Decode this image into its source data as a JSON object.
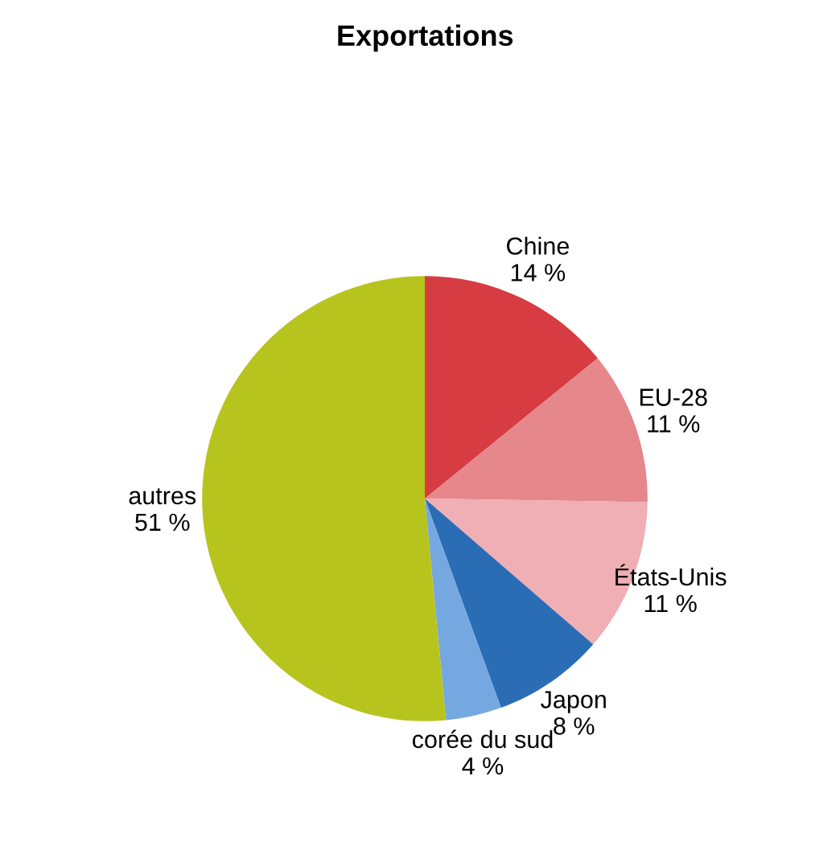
{
  "chart_data": {
    "type": "pie",
    "title": "Exportations",
    "categories": [
      "Chine",
      "EU-28",
      "États-Unis",
      "Japon",
      "corée du sud",
      "autres"
    ],
    "values": [
      14,
      11,
      11,
      8,
      4,
      51
    ],
    "value_labels": [
      "14 %",
      "11 %",
      "11 %",
      "8 %",
      "4 %",
      "51 %"
    ],
    "colors": [
      "#d63c41",
      "#e5878b",
      "#efafb4",
      "#2a6db5",
      "#75a8e0",
      "#b8c41e"
    ]
  }
}
